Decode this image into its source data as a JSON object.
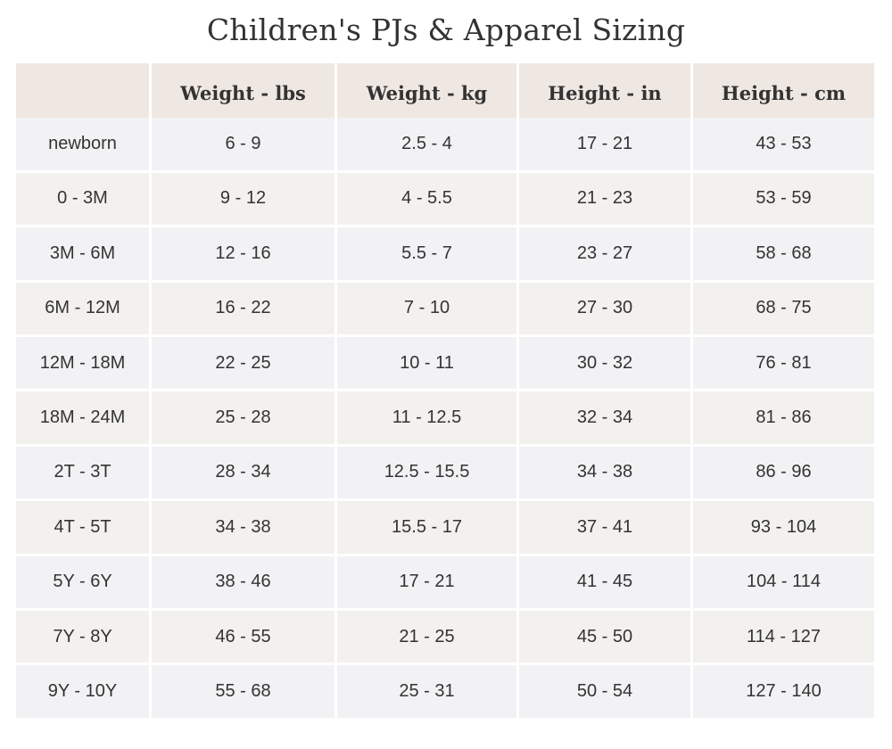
{
  "title": "Children's PJs & Apparel Sizing",
  "table": {
    "headers": [
      "",
      "Weight - lbs",
      "Weight - kg",
      "Height - in",
      "Height - cm"
    ],
    "rows": [
      [
        "newborn",
        "6 - 9",
        "2.5 - 4",
        "17 - 21",
        "43 - 53"
      ],
      [
        "0 - 3M",
        "9 - 12",
        "4 - 5.5",
        "21 - 23",
        "53 - 59"
      ],
      [
        "3M - 6M",
        "12 - 16",
        "5.5 - 7",
        "23 - 27",
        "58 - 68"
      ],
      [
        "6M - 12M",
        "16 - 22",
        "7 - 10",
        "27 - 30",
        "68 - 75"
      ],
      [
        "12M - 18M",
        "22 - 25",
        "10 - 11",
        "30 - 32",
        "76 - 81"
      ],
      [
        "18M - 24M",
        "25 - 28",
        "11 - 12.5",
        "32 - 34",
        "81 - 86"
      ],
      [
        "2T - 3T",
        "28 - 34",
        "12.5 - 15.5",
        "34 - 38",
        "86 - 96"
      ],
      [
        "4T - 5T",
        "34 - 38",
        "15.5 - 17",
        "37 - 41",
        "93 - 104"
      ],
      [
        "5Y - 6Y",
        "38 - 46",
        "17 - 21",
        "41 - 45",
        "104 - 114"
      ],
      [
        "7Y - 8Y",
        "46 - 55",
        "21 - 25",
        "45 - 50",
        "114 - 127"
      ],
      [
        "9Y - 10Y",
        "55 - 68",
        "25 - 31",
        "50 - 54",
        "127 - 140"
      ]
    ]
  },
  "colors": {
    "header_bg": "#efe7e1",
    "row_odd_bg": "#f2f2f4",
    "row_even_bg": "#f3f1ee",
    "text": "#333333"
  }
}
